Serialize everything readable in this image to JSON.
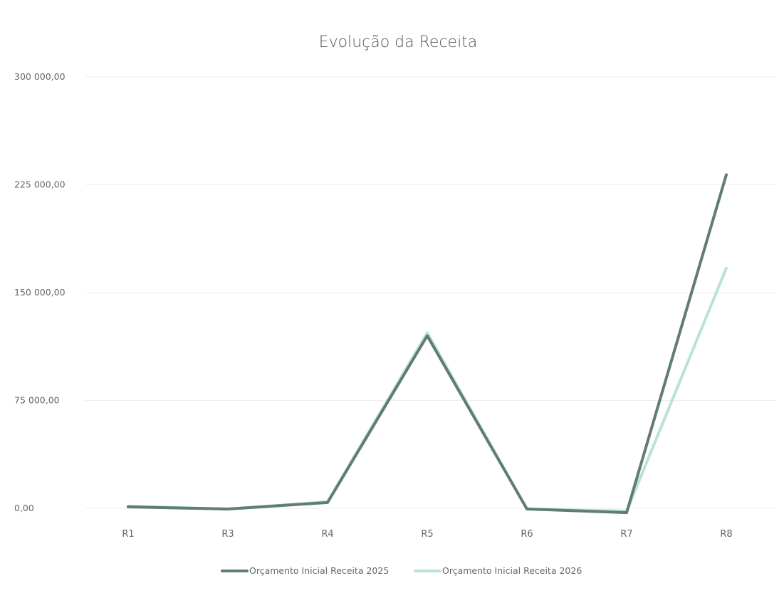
{
  "chart_data": {
    "type": "line",
    "title": "Evolução da Receita",
    "xlabel": "",
    "ylabel": "",
    "categories": [
      "R1",
      "R3",
      "R4",
      "R5",
      "R6",
      "R7",
      "R8"
    ],
    "ylim": [
      0,
      300000
    ],
    "yticks": [
      0,
      75000,
      150000,
      225000,
      300000
    ],
    "ytick_labels": [
      "0,00",
      "75 000,00",
      "150 000,00",
      "225 000,00",
      "300 000,00"
    ],
    "grid": true,
    "legend_position": "bottom",
    "series": [
      {
        "name": "Orçamento Inicial  Receita 2025",
        "color": "#5f7d70",
        "values": [
          1000,
          -500,
          4000,
          120000,
          -500,
          -3000,
          232000
        ]
      },
      {
        "name": "Orçamento Inicial Receita 2026",
        "color": "#b9e3d3",
        "values": [
          1500,
          -500,
          4500,
          122000,
          -500,
          -2000,
          167000
        ]
      }
    ]
  }
}
